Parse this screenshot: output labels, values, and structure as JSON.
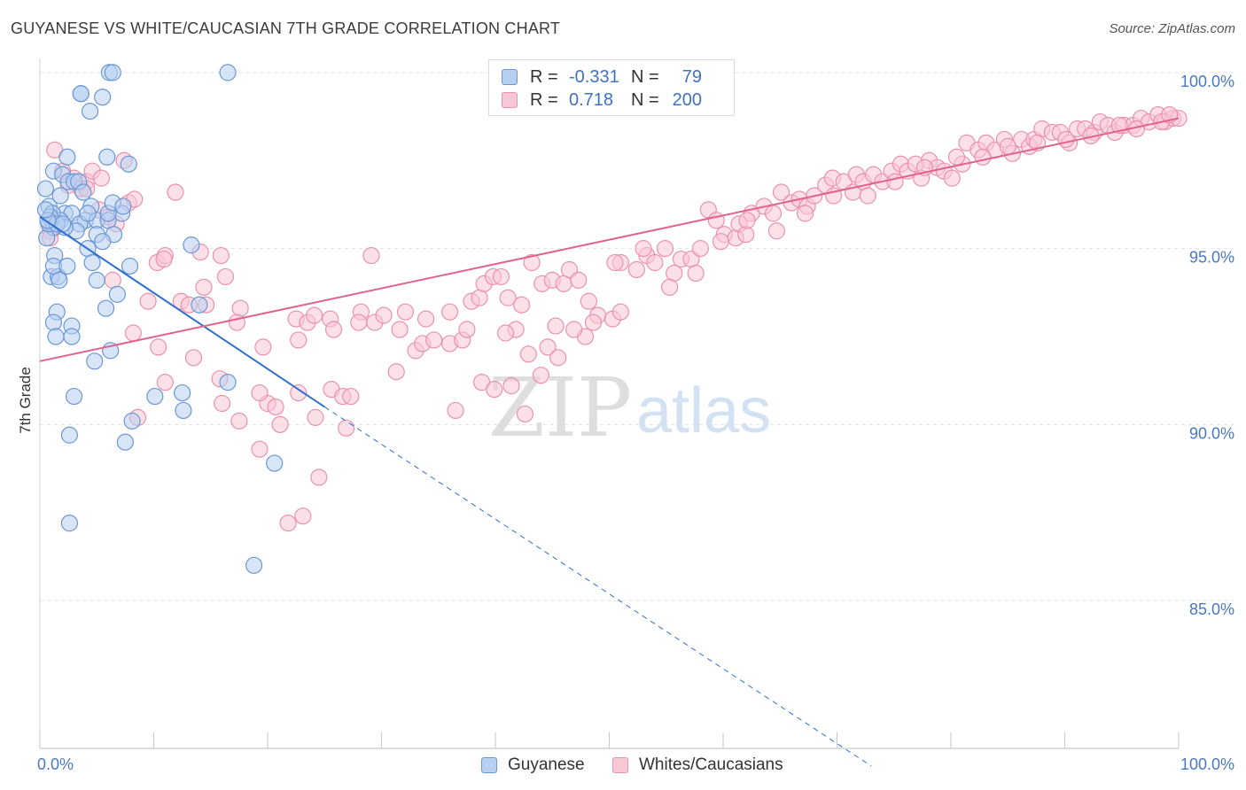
{
  "title": "GUYANESE VS WHITE/CAUCASIAN 7TH GRADE CORRELATION CHART",
  "source": "Source: ZipAtlas.com",
  "watermark": {
    "zip": "ZIP",
    "atlas": "atlas"
  },
  "legend": {
    "rows": [
      {
        "r_label": "R =",
        "r_value": "-0.331",
        "n_label": "N =",
        "n_value": "79"
      },
      {
        "r_label": "R =",
        "r_value": "0.718",
        "n_label": "N =",
        "n_value": "200"
      }
    ]
  },
  "bottom_legend": {
    "series1": "Guyanese",
    "series2": "Whites/Caucasians"
  },
  "colors": {
    "blue_fill": "#b7cff0",
    "blue_stroke": "#6c97d6",
    "blue_line": "#2f6fd0",
    "pink_fill": "#f9c6d5",
    "pink_stroke": "#e992ad",
    "pink_line": "#e0628d",
    "tick_label": "#4a78c2"
  },
  "chart_data": {
    "type": "scatter",
    "title": "GUYANESE VS WHITE/CAUCASIAN 7TH GRADE CORRELATION CHART",
    "xlabel": "",
    "ylabel": "7th Grade",
    "xlim": [
      0,
      100
    ],
    "ylim": [
      80.8,
      100.4
    ],
    "x_tick_labels": [
      "0.0%",
      "100.0%"
    ],
    "y_ticks": [
      {
        "value": 100,
        "label": "100.0%"
      },
      {
        "value": 95,
        "label": "95.0%"
      },
      {
        "value": 90,
        "label": "90.0%"
      },
      {
        "value": 85,
        "label": "85.0%"
      }
    ],
    "grid": true,
    "series": [
      {
        "name": "Guyanese",
        "r": -0.331,
        "n": 79,
        "trend": {
          "x0": 0,
          "y0": 95.9,
          "x1": 25,
          "y1": 90.5,
          "dash_x_end": 73,
          "dash_y_end": 80.3
        },
        "points": [
          [
            0.5,
            96.7
          ],
          [
            0.8,
            96.2
          ],
          [
            1.0,
            95.8
          ],
          [
            1.2,
            95.6
          ],
          [
            0.6,
            95.3
          ],
          [
            1.3,
            94.8
          ],
          [
            1.0,
            94.2
          ],
          [
            1.6,
            94.2
          ],
          [
            1.2,
            94.5
          ],
          [
            1.5,
            93.2
          ],
          [
            1.2,
            92.9
          ],
          [
            1.4,
            92.5
          ],
          [
            2.8,
            92.8
          ],
          [
            2.8,
            92.5
          ],
          [
            1.2,
            97.2
          ],
          [
            2.0,
            97.1
          ],
          [
            2.4,
            97.6
          ],
          [
            2.5,
            96.9
          ],
          [
            3.0,
            96.9
          ],
          [
            1.8,
            96.5
          ],
          [
            3.4,
            96.9
          ],
          [
            2.2,
            96.0
          ],
          [
            2.8,
            96.0
          ],
          [
            3.8,
            96.6
          ],
          [
            4.5,
            96.2
          ],
          [
            4.0,
            95.8
          ],
          [
            3.5,
            95.7
          ],
          [
            5.0,
            95.8
          ],
          [
            6.0,
            95.8
          ],
          [
            6.5,
            95.4
          ],
          [
            7.2,
            96.0
          ],
          [
            5.0,
            95.4
          ],
          [
            5.5,
            95.2
          ],
          [
            4.2,
            95.0
          ],
          [
            4.6,
            94.6
          ],
          [
            5.0,
            94.1
          ],
          [
            3.2,
            95.5
          ],
          [
            1.8,
            95.8
          ],
          [
            1.1,
            96.0
          ],
          [
            2.2,
            95.6
          ],
          [
            2.4,
            94.5
          ],
          [
            1.7,
            94.1
          ],
          [
            3.6,
            99.4
          ],
          [
            3.6,
            99.4
          ],
          [
            5.5,
            99.3
          ],
          [
            4.4,
            98.9
          ],
          [
            6.1,
            100.0
          ],
          [
            6.4,
            100.0
          ],
          [
            16.5,
            100.0
          ],
          [
            5.9,
            97.6
          ],
          [
            7.8,
            97.4
          ],
          [
            7.9,
            94.5
          ],
          [
            6.8,
            93.7
          ],
          [
            5.8,
            93.3
          ],
          [
            6.2,
            92.1
          ],
          [
            4.8,
            91.8
          ],
          [
            13.3,
            95.1
          ],
          [
            14.0,
            93.4
          ],
          [
            16.5,
            91.2
          ],
          [
            12.5,
            90.9
          ],
          [
            10.1,
            90.8
          ],
          [
            3.0,
            90.8
          ],
          [
            2.6,
            89.7
          ],
          [
            7.5,
            89.5
          ],
          [
            8.1,
            90.1
          ],
          [
            12.6,
            90.4
          ],
          [
            20.6,
            88.9
          ],
          [
            2.6,
            87.2
          ],
          [
            18.8,
            86.0
          ],
          [
            0.9,
            95.9
          ],
          [
            0.8,
            95.7
          ],
          [
            1.5,
            95.7
          ],
          [
            2.0,
            95.7
          ],
          [
            0.7,
            95.8
          ],
          [
            0.5,
            96.1
          ],
          [
            4.2,
            96.0
          ],
          [
            6.0,
            96.0
          ],
          [
            6.4,
            96.3
          ],
          [
            7.3,
            96.2
          ]
        ]
      },
      {
        "name": "Whites/Caucasians",
        "r": 0.718,
        "n": 200,
        "trend": {
          "x0": 0,
          "y0": 91.8,
          "x1": 100,
          "y1": 98.7
        },
        "points": [
          [
            1.3,
            97.8
          ],
          [
            2.0,
            97.2
          ],
          [
            3.0,
            97.0
          ],
          [
            4.1,
            96.9
          ],
          [
            4.6,
            97.2
          ],
          [
            5.4,
            97.0
          ],
          [
            2.5,
            96.8
          ],
          [
            3.6,
            96.7
          ],
          [
            7.4,
            97.5
          ],
          [
            4.1,
            96.7
          ],
          [
            5.2,
            96.1
          ],
          [
            7.8,
            96.3
          ],
          [
            8.3,
            96.4
          ],
          [
            6.0,
            95.9
          ],
          [
            6.7,
            95.7
          ],
          [
            1.3,
            95.6
          ],
          [
            0.9,
            95.5
          ],
          [
            0.9,
            95.3
          ],
          [
            11.9,
            96.6
          ],
          [
            10.3,
            94.6
          ],
          [
            11.0,
            94.8
          ],
          [
            14.1,
            94.9
          ],
          [
            15.9,
            94.8
          ],
          [
            16.3,
            94.2
          ],
          [
            6.4,
            94.1
          ],
          [
            9.5,
            93.5
          ],
          [
            12.4,
            93.5
          ],
          [
            13.1,
            93.4
          ],
          [
            14.6,
            93.4
          ],
          [
            17.6,
            93.3
          ],
          [
            17.3,
            92.9
          ],
          [
            19.6,
            92.2
          ],
          [
            8.2,
            92.6
          ],
          [
            10.4,
            92.2
          ],
          [
            13.5,
            91.9
          ],
          [
            11.0,
            91.2
          ],
          [
            15.8,
            91.3
          ],
          [
            16.0,
            90.6
          ],
          [
            20.0,
            90.6
          ],
          [
            22.7,
            90.9
          ],
          [
            17.5,
            90.1
          ],
          [
            19.3,
            90.9
          ],
          [
            20.7,
            90.5
          ],
          [
            21.1,
            90.0
          ],
          [
            24.2,
            90.2
          ],
          [
            25.6,
            91.0
          ],
          [
            26.6,
            90.8
          ],
          [
            27.3,
            90.8
          ],
          [
            26.9,
            89.9
          ],
          [
            8.6,
            90.2
          ],
          [
            22.7,
            92.4
          ],
          [
            22.5,
            93.0
          ],
          [
            23.5,
            92.9
          ],
          [
            24.1,
            93.1
          ],
          [
            25.5,
            93.0
          ],
          [
            25.8,
            92.7
          ],
          [
            28.2,
            93.2
          ],
          [
            28.0,
            92.9
          ],
          [
            29.4,
            92.9
          ],
          [
            30.2,
            93.1
          ],
          [
            31.6,
            92.7
          ],
          [
            32.1,
            93.2
          ],
          [
            33.0,
            92.1
          ],
          [
            33.6,
            92.3
          ],
          [
            34.6,
            92.4
          ],
          [
            36.0,
            93.2
          ],
          [
            36.0,
            92.3
          ],
          [
            37.1,
            92.4
          ],
          [
            37.9,
            93.5
          ],
          [
            38.6,
            93.6
          ],
          [
            39.0,
            94.0
          ],
          [
            39.8,
            94.2
          ],
          [
            40.5,
            94.2
          ],
          [
            41.8,
            92.7
          ],
          [
            41.1,
            93.6
          ],
          [
            42.3,
            93.4
          ],
          [
            43.2,
            94.6
          ],
          [
            44.1,
            94.0
          ],
          [
            45.0,
            94.1
          ],
          [
            45.3,
            92.8
          ],
          [
            46.0,
            94.0
          ],
          [
            46.5,
            94.4
          ],
          [
            47.3,
            94.1
          ],
          [
            48.2,
            93.5
          ],
          [
            49.0,
            93.1
          ],
          [
            48.6,
            92.9
          ],
          [
            50.3,
            93.0
          ],
          [
            51.0,
            93.2
          ],
          [
            51.0,
            94.6
          ],
          [
            52.4,
            94.4
          ],
          [
            53.3,
            94.8
          ],
          [
            54.0,
            94.6
          ],
          [
            54.9,
            95.0
          ],
          [
            55.7,
            94.3
          ],
          [
            56.3,
            94.7
          ],
          [
            57.2,
            94.7
          ],
          [
            58.0,
            95.0
          ],
          [
            58.7,
            96.1
          ],
          [
            59.4,
            95.8
          ],
          [
            60.1,
            95.4
          ],
          [
            61.1,
            95.3
          ],
          [
            61.4,
            95.7
          ],
          [
            62.0,
            95.4
          ],
          [
            62.5,
            96.0
          ],
          [
            63.6,
            96.2
          ],
          [
            64.4,
            96.0
          ],
          [
            65.1,
            96.6
          ],
          [
            66.0,
            96.3
          ],
          [
            66.7,
            96.4
          ],
          [
            67.4,
            96.2
          ],
          [
            68.0,
            96.5
          ],
          [
            69.0,
            96.8
          ],
          [
            69.6,
            97.0
          ],
          [
            70.6,
            96.9
          ],
          [
            71.4,
            96.6
          ],
          [
            71.7,
            97.1
          ],
          [
            72.3,
            96.9
          ],
          [
            73.2,
            97.1
          ],
          [
            74.0,
            96.9
          ],
          [
            74.8,
            97.2
          ],
          [
            75.6,
            97.4
          ],
          [
            76.2,
            97.2
          ],
          [
            76.9,
            97.4
          ],
          [
            77.4,
            97.0
          ],
          [
            78.1,
            97.5
          ],
          [
            78.8,
            97.3
          ],
          [
            79.4,
            97.2
          ],
          [
            80.1,
            97.0
          ],
          [
            81.0,
            97.4
          ],
          [
            81.4,
            98.0
          ],
          [
            82.4,
            97.8
          ],
          [
            83.1,
            98.0
          ],
          [
            83.9,
            97.8
          ],
          [
            84.7,
            98.1
          ],
          [
            85.4,
            97.7
          ],
          [
            86.2,
            98.1
          ],
          [
            86.9,
            97.9
          ],
          [
            87.3,
            98.1
          ],
          [
            88.0,
            98.4
          ],
          [
            88.9,
            98.3
          ],
          [
            89.6,
            98.3
          ],
          [
            90.4,
            98.0
          ],
          [
            91.1,
            98.4
          ],
          [
            91.8,
            98.4
          ],
          [
            92.6,
            98.3
          ],
          [
            93.1,
            98.6
          ],
          [
            93.8,
            98.5
          ],
          [
            94.4,
            98.3
          ],
          [
            95.2,
            98.5
          ],
          [
            96.0,
            98.5
          ],
          [
            96.7,
            98.7
          ],
          [
            97.4,
            98.6
          ],
          [
            98.2,
            98.8
          ],
          [
            98.8,
            98.6
          ],
          [
            99.5,
            98.7
          ],
          [
            100.0,
            98.7
          ],
          [
            36.5,
            90.4
          ],
          [
            38.8,
            91.2
          ],
          [
            39.9,
            91.0
          ],
          [
            41.4,
            91.1
          ],
          [
            42.6,
            90.3
          ],
          [
            31.3,
            91.5
          ],
          [
            24.5,
            88.5
          ],
          [
            23.1,
            87.4
          ],
          [
            21.8,
            87.2
          ],
          [
            19.3,
            89.3
          ],
          [
            42.9,
            92.0
          ],
          [
            44.6,
            92.2
          ],
          [
            45.5,
            91.9
          ],
          [
            47.9,
            92.5
          ],
          [
            50.5,
            94.6
          ],
          [
            53.0,
            95.0
          ],
          [
            55.3,
            93.9
          ],
          [
            57.6,
            94.3
          ],
          [
            59.8,
            95.2
          ],
          [
            62.1,
            95.8
          ],
          [
            64.7,
            95.5
          ],
          [
            67.2,
            96.0
          ],
          [
            69.7,
            96.5
          ],
          [
            72.7,
            96.5
          ],
          [
            75.1,
            96.9
          ],
          [
            77.7,
            97.3
          ],
          [
            80.5,
            97.6
          ],
          [
            82.8,
            97.6
          ],
          [
            85.0,
            97.9
          ],
          [
            87.6,
            98.0
          ],
          [
            90.1,
            98.1
          ],
          [
            92.3,
            98.2
          ],
          [
            94.8,
            98.5
          ],
          [
            96.3,
            98.4
          ],
          [
            98.5,
            98.6
          ],
          [
            99.2,
            98.8
          ],
          [
            37.5,
            92.7
          ],
          [
            40.9,
            92.6
          ],
          [
            44.0,
            91.4
          ],
          [
            46.9,
            92.7
          ],
          [
            29.1,
            94.8
          ],
          [
            33.9,
            93.0
          ],
          [
            10.9,
            94.7
          ],
          [
            14.4,
            93.9
          ]
        ]
      }
    ]
  }
}
